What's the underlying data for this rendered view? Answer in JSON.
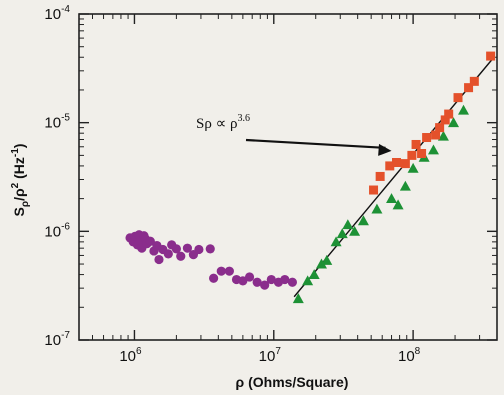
{
  "chart_data": {
    "type": "scatter",
    "xlabel": "ρ (Ohms/Square)",
    "ylabel": "Sρ/ρ² (Hz⁻¹)",
    "x_scale": "log",
    "y_scale": "log",
    "xlim": [
      400000,
      400000000
    ],
    "ylim": [
      1e-07,
      0.0001
    ],
    "x_ticks": [
      {
        "value": 1000000,
        "base": "10",
        "exp": "6"
      },
      {
        "value": 10000000,
        "base": "10",
        "exp": "7"
      },
      {
        "value": 100000000,
        "base": "10",
        "exp": "8"
      }
    ],
    "y_ticks": [
      {
        "value": 1e-07,
        "base": "10",
        "exp": "-7"
      },
      {
        "value": 1e-06,
        "base": "10",
        "exp": "-6"
      },
      {
        "value": 1e-05,
        "base": "10",
        "exp": "-5"
      },
      {
        "value": 0.0001,
        "base": "10",
        "exp": "-4"
      }
    ],
    "grid": false,
    "annotation": {
      "text": "Sρ ∝ ρ",
      "exp": "3.6",
      "points_to": [
        70000000,
        5.5e-06
      ]
    },
    "fit_line": {
      "x": [
        14000000,
        380000000
      ],
      "y": [
        2.5e-07,
        4e-05
      ],
      "color": "#111111"
    },
    "series": [
      {
        "marker": "circle",
        "color": "#8a2d8c",
        "points": [
          [
            930000,
            8.7e-07
          ],
          [
            980000,
            8e-07
          ],
          [
            1010000,
            9e-07
          ],
          [
            1050000,
            7.5e-07
          ],
          [
            1080000,
            9.3e-07
          ],
          [
            1100000,
            8.2e-07
          ],
          [
            1130000,
            7e-07
          ],
          [
            1170000,
            9.1e-07
          ],
          [
            1200000,
            8.5e-07
          ],
          [
            1230000,
            7.7e-07
          ],
          [
            1300000,
            8.1e-07
          ],
          [
            1380000,
            6.6e-07
          ],
          [
            1450000,
            7.4e-07
          ],
          [
            1500000,
            5.5e-07
          ],
          [
            1600000,
            6.8e-07
          ],
          [
            1750000,
            6.2e-07
          ],
          [
            1850000,
            7.5e-07
          ],
          [
            2000000,
            6.9e-07
          ],
          [
            2150000,
            5.9e-07
          ],
          [
            2400000,
            7e-07
          ],
          [
            2650000,
            6.1e-07
          ],
          [
            2900000,
            6.8e-07
          ],
          [
            3500000,
            6.9e-07
          ],
          [
            3700000,
            3.7e-07
          ],
          [
            4200000,
            4.3e-07
          ],
          [
            4800000,
            4.3e-07
          ],
          [
            5400000,
            3.6e-07
          ],
          [
            6000000,
            3.5e-07
          ],
          [
            6700000,
            3.8e-07
          ],
          [
            7600000,
            3.4e-07
          ],
          [
            8600000,
            3.2e-07
          ],
          [
            9600000,
            3.6e-07
          ],
          [
            10800000,
            3.4e-07
          ],
          [
            12000000,
            3.6e-07
          ],
          [
            13600000,
            3.4e-07
          ]
        ]
      },
      {
        "marker": "triangle",
        "color": "#1d9135",
        "points": [
          [
            15000000,
            2.4e-07
          ],
          [
            17500000,
            3.5e-07
          ],
          [
            19500000,
            4e-07
          ],
          [
            22000000,
            5e-07
          ],
          [
            24000000,
            5.4e-07
          ],
          [
            28000000,
            8e-07
          ],
          [
            31000000,
            9.5e-07
          ],
          [
            34000000,
            1.15e-06
          ],
          [
            38000000,
            1e-06
          ],
          [
            44000000,
            1.25e-06
          ],
          [
            55000000,
            1.6e-06
          ],
          [
            70000000,
            2e-06
          ],
          [
            78000000,
            1.75e-06
          ],
          [
            88000000,
            2.6e-06
          ],
          [
            100000000,
            3.8e-06
          ],
          [
            120000000,
            4.8e-06
          ],
          [
            140000000,
            5.6e-06
          ],
          [
            165000000,
            7.5e-06
          ],
          [
            195000000,
            1e-05
          ],
          [
            230000000,
            1.3e-05
          ]
        ]
      },
      {
        "marker": "square",
        "color": "#e4512b",
        "points": [
          [
            52000000,
            2.4e-06
          ],
          [
            58000000,
            3.2e-06
          ],
          [
            68000000,
            4e-06
          ],
          [
            76000000,
            4.3e-06
          ],
          [
            88000000,
            4.2e-06
          ],
          [
            98000000,
            5e-06
          ],
          [
            105000000,
            6.3e-06
          ],
          [
            115000000,
            5.2e-06
          ],
          [
            125000000,
            7.3e-06
          ],
          [
            145000000,
            7.7e-06
          ],
          [
            155000000,
            9e-06
          ],
          [
            170000000,
            1.06e-05
          ],
          [
            180000000,
            1.2e-05
          ],
          [
            210000000,
            1.7e-05
          ],
          [
            250000000,
            2.1e-05
          ],
          [
            275000000,
            2.4e-05
          ],
          [
            360000000,
            4.1e-05
          ]
        ]
      }
    ]
  }
}
